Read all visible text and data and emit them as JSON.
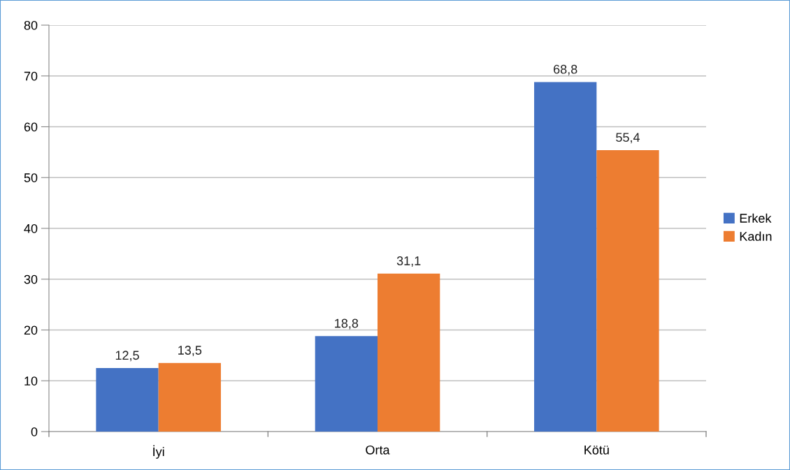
{
  "chart_data": {
    "type": "bar",
    "categories": [
      "İyi",
      "Orta",
      "Kötü"
    ],
    "series": [
      {
        "name": "Erkek",
        "color": "#4472c4",
        "values": [
          12.5,
          18.8,
          68.8
        ],
        "value_labels": [
          "12,5",
          "18,8",
          "68,8"
        ]
      },
      {
        "name": "Kadın",
        "color": "#ed7d31",
        "values": [
          13.5,
          31.1,
          55.4
        ],
        "value_labels": [
          "13,5",
          "31,1",
          "55,4"
        ]
      }
    ],
    "ylim": [
      0,
      80
    ],
    "yticks": [
      0,
      10,
      20,
      30,
      40,
      50,
      60,
      70,
      80
    ],
    "grid": "y",
    "legend": "right"
  }
}
